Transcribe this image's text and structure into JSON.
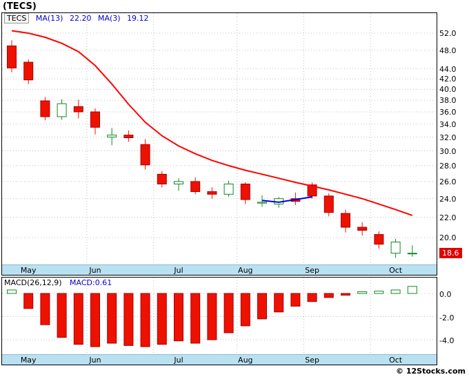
{
  "window": {
    "title": "(TECS)"
  },
  "copyright": "© 12Stocks.com",
  "colors": {
    "down": "#ee1100",
    "down_edge": "#aa0000",
    "up": "#118822",
    "ma13": "#ff0000",
    "ma3": "#0000dd",
    "grid": "#bfbfbf",
    "band": "#b9e1f2",
    "badge_bg": "#e00000",
    "badge_text": "#ffffff",
    "legend_blue": "#0000cc"
  },
  "price_panel": {
    "legend": {
      "symbol": "TECS",
      "ma13_label": "MA(13)",
      "ma13_value": "22.20",
      "ma3_label": "MA(3)",
      "ma3_value": "19.12"
    },
    "y_ticks": [
      "52.0",
      "48.0",
      "44.0",
      "42.0",
      "40.0",
      "38.0",
      "36.0",
      "34.0",
      "32.0",
      "30.0",
      "28.0",
      "26.0",
      "24.0",
      "22.0",
      "20.0"
    ],
    "last_price": "18.6"
  },
  "macd_panel": {
    "legend": {
      "label": "MACD(26,12,9)",
      "value": "MACD:0.61"
    },
    "y_ticks": [
      "0.0",
      "-2.0",
      "-4.0"
    ]
  },
  "chart_data": [
    {
      "type": "candlestick",
      "title": "TECS weekly price with MA(13) and MA(3)",
      "scale": "log",
      "ylim": [
        17.6,
        54.0
      ],
      "x_labels": [
        "May",
        "Jun",
        "Jul",
        "Aug",
        "Sep",
        "Oct"
      ],
      "month_labels": [
        {
          "label": "May",
          "index": 1
        },
        {
          "label": "Jun",
          "index": 5
        },
        {
          "label": "Jul",
          "index": 10
        },
        {
          "label": "Aug",
          "index": 14
        },
        {
          "label": "Sep",
          "index": 18
        },
        {
          "label": "Oct",
          "index": 23
        }
      ],
      "month_boundaries": [
        5,
        9,
        14,
        18,
        22
      ],
      "candles": [
        {
          "o": 49.0,
          "h": 50.3,
          "l": 43.3,
          "c": 44.2
        },
        {
          "o": 45.4,
          "h": 46.0,
          "l": 41.0,
          "c": 41.8
        },
        {
          "o": 37.9,
          "h": 38.6,
          "l": 34.6,
          "c": 35.2
        },
        {
          "o": 35.2,
          "h": 38.2,
          "l": 34.7,
          "c": 37.4
        },
        {
          "o": 36.9,
          "h": 38.1,
          "l": 34.9,
          "c": 36.0
        },
        {
          "o": 36.0,
          "h": 36.6,
          "l": 32.4,
          "c": 33.5
        },
        {
          "o": 32.0,
          "h": 33.4,
          "l": 30.8,
          "c": 32.3
        },
        {
          "o": 32.3,
          "h": 33.0,
          "l": 31.3,
          "c": 31.9
        },
        {
          "o": 30.9,
          "h": 31.7,
          "l": 27.5,
          "c": 28.1
        },
        {
          "o": 26.9,
          "h": 27.3,
          "l": 25.3,
          "c": 25.7
        },
        {
          "o": 25.7,
          "h": 26.4,
          "l": 24.9,
          "c": 26.0
        },
        {
          "o": 26.0,
          "h": 26.5,
          "l": 24.5,
          "c": 24.8
        },
        {
          "o": 24.8,
          "h": 25.3,
          "l": 24.0,
          "c": 24.5
        },
        {
          "o": 24.5,
          "h": 26.1,
          "l": 24.2,
          "c": 25.7
        },
        {
          "o": 25.7,
          "h": 25.9,
          "l": 23.4,
          "c": 23.9
        },
        {
          "o": 23.5,
          "h": 24.4,
          "l": 23.1,
          "c": 23.6
        },
        {
          "o": 23.4,
          "h": 24.2,
          "l": 23.0,
          "c": 24.0
        },
        {
          "o": 24.0,
          "h": 24.7,
          "l": 23.3,
          "c": 23.7
        },
        {
          "o": 25.6,
          "h": 25.9,
          "l": 24.0,
          "c": 24.3
        },
        {
          "o": 24.3,
          "h": 24.6,
          "l": 22.1,
          "c": 22.5
        },
        {
          "o": 22.4,
          "h": 22.8,
          "l": 20.5,
          "c": 21.0
        },
        {
          "o": 21.0,
          "h": 21.5,
          "l": 20.2,
          "c": 20.7
        },
        {
          "o": 20.3,
          "h": 20.6,
          "l": 19.0,
          "c": 19.4
        },
        {
          "o": 18.6,
          "h": 19.9,
          "l": 18.2,
          "c": 19.6
        },
        {
          "o": 18.55,
          "h": 19.3,
          "l": 18.3,
          "c": 18.6
        }
      ],
      "ma13": [
        52.6,
        52.0,
        51.0,
        49.6,
        47.7,
        44.7,
        41.0,
        37.3,
        34.3,
        32.2,
        30.7,
        29.6,
        28.7,
        28.0,
        27.4,
        26.9,
        26.4,
        25.9,
        25.45,
        25.0,
        24.5,
        24.0,
        23.4,
        22.8,
        22.2
      ],
      "ma13_last": 22.2,
      "ma3_segment": {
        "start_index": 15,
        "values": [
          23.8,
          23.6,
          23.9,
          24.2
        ]
      },
      "ma3_last": 19.12,
      "last_price": 18.6
    },
    {
      "type": "bar",
      "title": "MACD(26,12,9)",
      "current": 0.61,
      "ylim": [
        -5.3,
        1.2
      ],
      "y_ticks": [
        0.0,
        -2.0,
        -4.0
      ],
      "values": [
        0.3,
        -1.3,
        -2.7,
        -3.8,
        -4.4,
        -4.6,
        -4.3,
        -4.5,
        -4.6,
        -4.4,
        -4.1,
        -4.3,
        -4.0,
        -3.4,
        -2.8,
        -2.2,
        -1.6,
        -1.1,
        -0.7,
        -0.35,
        -0.15,
        0.15,
        0.2,
        0.3,
        0.61
      ]
    }
  ]
}
